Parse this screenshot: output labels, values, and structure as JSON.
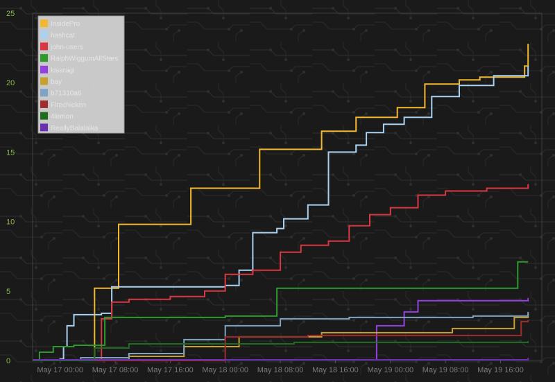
{
  "chart_data": {
    "type": "line",
    "step": true,
    "background": "#1a1a1a",
    "ylim": [
      0,
      25
    ],
    "y_ticks": [
      "0",
      "5",
      "10",
      "15",
      "20",
      "25"
    ],
    "x_range": [
      "2013-05-16 20:00",
      "2013-05-19 22:00"
    ],
    "x_ticks": [
      {
        "t": "2013-05-17 00:00",
        "label": "May 17 00:00"
      },
      {
        "t": "2013-05-17 08:00",
        "label": "May 17 08:00"
      },
      {
        "t": "2013-05-17 16:00",
        "label": "May 17 16:00"
      },
      {
        "t": "2013-05-18 00:00",
        "label": "May 18 00:00"
      },
      {
        "t": "2013-05-18 08:00",
        "label": "May 18 08:00"
      },
      {
        "t": "2013-05-18 16:00",
        "label": "May 18 16:00"
      },
      {
        "t": "2013-05-19 00:00",
        "label": "May 19 00:00"
      },
      {
        "t": "2013-05-19 08:00",
        "label": "May 19 08:00"
      },
      {
        "t": "2013-05-19 16:00",
        "label": "May 19 16:00"
      }
    ],
    "legend_position": "top-left",
    "series": [
      {
        "name": "InsidePro",
        "color": "#f2b830",
        "points": [
          [
            "2013-05-16 20:00",
            0
          ],
          [
            "2013-05-17 05:00",
            0
          ],
          [
            "2013-05-17 05:00",
            5.2
          ],
          [
            "2013-05-17 08:30",
            5.2
          ],
          [
            "2013-05-17 08:30",
            9.8
          ],
          [
            "2013-05-17 19:00",
            9.8
          ],
          [
            "2013-05-17 19:00",
            12.4
          ],
          [
            "2013-05-18 05:00",
            12.4
          ],
          [
            "2013-05-18 05:00",
            15.2
          ],
          [
            "2013-05-18 14:00",
            15.3
          ],
          [
            "2013-05-18 14:00",
            16.5
          ],
          [
            "2013-05-18 19:00",
            16.5
          ],
          [
            "2013-05-18 19:00",
            17.5
          ],
          [
            "2013-05-19 01:00",
            17.7
          ],
          [
            "2013-05-19 01:00",
            18.2
          ],
          [
            "2013-05-19 05:00",
            18.2
          ],
          [
            "2013-05-19 05:00",
            19.9
          ],
          [
            "2013-05-19 10:00",
            20.2
          ],
          [
            "2013-05-19 13:00",
            20.4
          ],
          [
            "2013-05-19 19:30",
            20.5
          ],
          [
            "2013-05-19 19:30",
            21.2
          ],
          [
            "2013-05-19 20:00",
            22.8
          ]
        ]
      },
      {
        "name": "hashcat",
        "color": "#a9d2f2",
        "points": [
          [
            "2013-05-16 20:00",
            0
          ],
          [
            "2013-05-17 00:00",
            0.1
          ],
          [
            "2013-05-17 00:30",
            1
          ],
          [
            "2013-05-17 01:00",
            2.5
          ],
          [
            "2013-05-17 02:00",
            3.3
          ],
          [
            "2013-05-17 06:00",
            3.4
          ],
          [
            "2013-05-17 07:30",
            5.3
          ],
          [
            "2013-05-18 00:00",
            5.4
          ],
          [
            "2013-05-18 02:00",
            6.5
          ],
          [
            "2013-05-18 04:00",
            9.2
          ],
          [
            "2013-05-18 07:30",
            9.5
          ],
          [
            "2013-05-18 08:30",
            10.2
          ],
          [
            "2013-05-18 12:00",
            11.2
          ],
          [
            "2013-05-18 15:00",
            12.0
          ],
          [
            "2013-05-18 15:00",
            15.0
          ],
          [
            "2013-05-18 19:00",
            15.5
          ],
          [
            "2013-05-18 20:30",
            16.4
          ],
          [
            "2013-05-18 23:00",
            17.0
          ],
          [
            "2013-05-19 02:00",
            17.5
          ],
          [
            "2013-05-19 06:00",
            19.0
          ],
          [
            "2013-05-19 10:00",
            19.8
          ],
          [
            "2013-05-19 15:00",
            20.5
          ],
          [
            "2013-05-19 20:00",
            21.2
          ]
        ]
      },
      {
        "name": "john-users",
        "color": "#d93840",
        "points": [
          [
            "2013-05-16 20:00",
            0
          ],
          [
            "2013-05-17 06:00",
            0
          ],
          [
            "2013-05-17 06:00",
            3.0
          ],
          [
            "2013-05-17 07:30",
            4.2
          ],
          [
            "2013-05-17 10:00",
            4.4
          ],
          [
            "2013-05-17 16:00",
            4.6
          ],
          [
            "2013-05-17 21:00",
            5.0
          ],
          [
            "2013-05-18 00:00",
            6.2
          ],
          [
            "2013-05-18 04:00",
            6.5
          ],
          [
            "2013-05-18 08:00",
            7.8
          ],
          [
            "2013-05-18 11:00",
            8.3
          ],
          [
            "2013-05-18 15:00",
            8.6
          ],
          [
            "2013-05-18 18:00",
            9.7
          ],
          [
            "2013-05-18 21:00",
            10.5
          ],
          [
            "2013-05-19 00:00",
            11.0
          ],
          [
            "2013-05-19 04:00",
            11.9
          ],
          [
            "2013-05-19 08:00",
            12.2
          ],
          [
            "2013-05-19 14:00",
            12.4
          ],
          [
            "2013-05-19 20:00",
            12.7
          ]
        ]
      },
      {
        "name": "RalphWiggumAllStars",
        "color": "#2e9a2e",
        "points": [
          [
            "2013-05-16 20:00",
            0
          ],
          [
            "2013-05-16 21:00",
            0.6
          ],
          [
            "2013-05-16 23:00",
            1.0
          ],
          [
            "2013-05-17 02:00",
            1.1
          ],
          [
            "2013-05-17 06:30",
            1.1
          ],
          [
            "2013-05-17 06:30",
            3.1
          ],
          [
            "2013-05-17 14:00",
            3.1
          ],
          [
            "2013-05-18 00:00",
            3.2
          ],
          [
            "2013-05-18 07:30",
            3.2
          ],
          [
            "2013-05-18 07:30",
            5.2
          ],
          [
            "2013-05-19 18:30",
            5.2
          ],
          [
            "2013-05-19 18:30",
            7.1
          ],
          [
            "2013-05-19 20:00",
            7.1
          ]
        ]
      },
      {
        "name": "kisaragi",
        "color": "#9440e0",
        "points": [
          [
            "2013-05-16 20:00",
            0.05
          ],
          [
            "2013-05-18 22:00",
            0.05
          ],
          [
            "2013-05-18 22:00",
            2.5
          ],
          [
            "2013-05-19 02:00",
            3.5
          ],
          [
            "2013-05-19 04:00",
            4.3
          ],
          [
            "2013-05-19 20:00",
            4.5
          ]
        ]
      },
      {
        "name": "bay",
        "color": "#c9a030",
        "points": [
          [
            "2013-05-16 20:00",
            0
          ],
          [
            "2013-05-17 08:00",
            0
          ],
          [
            "2013-05-17 10:00",
            0.3
          ],
          [
            "2013-05-17 18:00",
            1.0
          ],
          [
            "2013-05-18 02:00",
            1.7
          ],
          [
            "2013-05-18 14:00",
            2.0
          ],
          [
            "2013-05-19 05:00",
            2.0
          ],
          [
            "2013-05-19 09:00",
            2.3
          ],
          [
            "2013-05-19 18:00",
            3.1
          ],
          [
            "2013-05-19 20:00",
            3.4
          ]
        ]
      },
      {
        "name": "b71310a6",
        "color": "#7fa3c3",
        "points": [
          [
            "2013-05-16 20:00",
            0
          ],
          [
            "2013-05-17 03:00",
            0.2
          ],
          [
            "2013-05-17 10:00",
            0.5
          ],
          [
            "2013-05-17 18:00",
            1.5
          ],
          [
            "2013-05-18 00:00",
            2.5
          ],
          [
            "2013-05-18 08:00",
            3.0
          ],
          [
            "2013-05-18 18:00",
            3.1
          ],
          [
            "2013-05-19 06:00",
            3.1
          ],
          [
            "2013-05-19 12:00",
            3.2
          ],
          [
            "2013-05-19 20:00",
            3.5
          ]
        ]
      },
      {
        "name": "Firechicken",
        "color": "#9e2c2c",
        "points": [
          [
            "2013-05-16 20:00",
            0
          ],
          [
            "2013-05-18 00:00",
            0
          ],
          [
            "2013-05-18 00:00",
            1.7
          ],
          [
            "2013-05-18 12:00",
            1.8
          ],
          [
            "2013-05-19 19:00",
            1.8
          ],
          [
            "2013-05-19 19:00",
            2.8
          ],
          [
            "2013-05-19 20:00",
            2.9
          ]
        ]
      },
      {
        "name": "4lemon",
        "color": "#1f6e1f",
        "points": [
          [
            "2013-05-16 20:00",
            0
          ],
          [
            "2013-05-17 05:00",
            0.9
          ],
          [
            "2013-05-17 10:00",
            1.2
          ],
          [
            "2013-05-18 10:00",
            1.3
          ],
          [
            "2013-05-19 20:00",
            1.4
          ]
        ]
      },
      {
        "name": "ReallyBalalaika",
        "color": "#6a2fb0",
        "points": [
          [
            "2013-05-16 20:00",
            0.05
          ],
          [
            "2013-05-19 20:00",
            0.2
          ]
        ]
      }
    ]
  }
}
